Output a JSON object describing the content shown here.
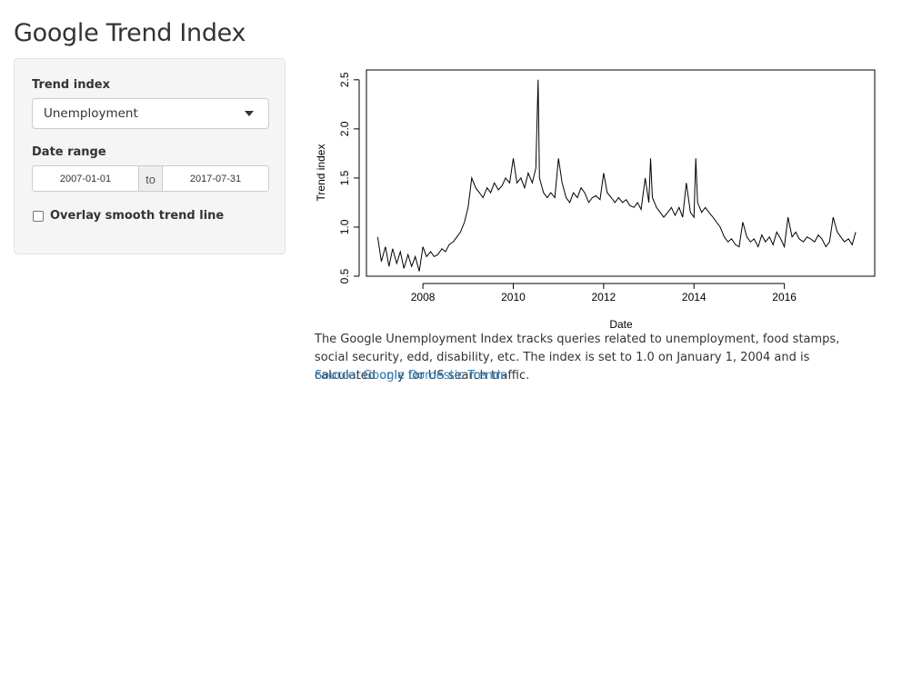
{
  "page": {
    "title": "Google Trend Index"
  },
  "sidebar": {
    "trend_label": "Trend index",
    "trend_selected": "Unemployment",
    "date_label": "Date range",
    "date_start": "2007-01-01",
    "date_sep": "to",
    "date_end": "2017-07-31",
    "overlay_label": "Overlay smooth trend line",
    "overlay_checked": false
  },
  "caption": {
    "text": "The Google Unemployment Index tracks queries related to unemployment, food stamps, social security, edd, disability, etc. The index is set to 1.0 on January 1, 2004 and is calculated only for US search traffic.",
    "source_label": "Source: Google Domestic Trends"
  },
  "chart_data": {
    "type": "line",
    "title": "",
    "xlabel": "Date",
    "ylabel": "Trend index",
    "x_range": [
      "2007-01-01",
      "2017-07-31"
    ],
    "xlim": [
      2006.75,
      2018.0
    ],
    "ylim": [
      0.5,
      2.6
    ],
    "x_ticks": [
      2008,
      2010,
      2012,
      2014,
      2016
    ],
    "x_tick_labels": [
      "2008",
      "2010",
      "2012",
      "2014",
      "2016"
    ],
    "y_ticks": [
      0.5,
      1.0,
      1.5,
      2.0,
      2.5
    ],
    "y_tick_labels": [
      "0.5",
      "1.0",
      "1.5",
      "2.0",
      "2.5"
    ],
    "grid": false,
    "color": "#000000",
    "series": [
      {
        "x": [
          2007.0,
          2007.08,
          2007.17,
          2007.25,
          2007.33,
          2007.42,
          2007.5,
          2007.58,
          2007.67,
          2007.75,
          2007.83,
          2007.92,
          2008.0,
          2008.08,
          2008.17,
          2008.25,
          2008.33,
          2008.42,
          2008.5,
          2008.58,
          2008.67,
          2008.75,
          2008.83,
          2008.92,
          2009.0,
          2009.08,
          2009.17,
          2009.25,
          2009.33,
          2009.42,
          2009.5,
          2009.58,
          2009.67,
          2009.75,
          2009.83,
          2009.92,
          2010.0,
          2010.08,
          2010.17,
          2010.25,
          2010.33,
          2010.42,
          2010.5,
          2010.55,
          2010.58,
          2010.67,
          2010.75,
          2010.83,
          2010.92,
          2011.0,
          2011.08,
          2011.17,
          2011.25,
          2011.33,
          2011.42,
          2011.5,
          2011.58,
          2011.67,
          2011.75,
          2011.83,
          2011.92,
          2012.0,
          2012.08,
          2012.17,
          2012.25,
          2012.33,
          2012.42,
          2012.5,
          2012.58,
          2012.67,
          2012.75,
          2012.83,
          2012.92,
          2013.0,
          2013.04,
          2013.08,
          2013.17,
          2013.25,
          2013.33,
          2013.42,
          2013.5,
          2013.58,
          2013.67,
          2013.75,
          2013.83,
          2013.92,
          2014.0,
          2014.04,
          2014.08,
          2014.17,
          2014.25,
          2014.33,
          2014.42,
          2014.5,
          2014.58,
          2014.67,
          2014.75,
          2014.83,
          2014.92,
          2015.0,
          2015.08,
          2015.17,
          2015.25,
          2015.33,
          2015.42,
          2015.5,
          2015.58,
          2015.67,
          2015.75,
          2015.83,
          2015.92,
          2016.0,
          2016.08,
          2016.17,
          2016.25,
          2016.33,
          2016.42,
          2016.5,
          2016.58,
          2016.67,
          2016.75,
          2016.83,
          2016.92,
          2017.0,
          2017.08,
          2017.17,
          2017.25,
          2017.33,
          2017.42,
          2017.5,
          2017.58
        ],
        "values": [
          0.9,
          0.65,
          0.8,
          0.6,
          0.78,
          0.63,
          0.75,
          0.58,
          0.72,
          0.6,
          0.7,
          0.55,
          0.8,
          0.7,
          0.75,
          0.7,
          0.72,
          0.78,
          0.75,
          0.82,
          0.85,
          0.9,
          0.95,
          1.05,
          1.2,
          1.5,
          1.4,
          1.35,
          1.3,
          1.4,
          1.35,
          1.45,
          1.38,
          1.42,
          1.5,
          1.45,
          1.7,
          1.45,
          1.5,
          1.4,
          1.55,
          1.45,
          1.6,
          2.5,
          1.5,
          1.35,
          1.3,
          1.35,
          1.3,
          1.7,
          1.45,
          1.3,
          1.25,
          1.35,
          1.3,
          1.4,
          1.35,
          1.25,
          1.3,
          1.32,
          1.28,
          1.55,
          1.35,
          1.3,
          1.25,
          1.3,
          1.25,
          1.28,
          1.22,
          1.2,
          1.25,
          1.18,
          1.5,
          1.25,
          1.7,
          1.3,
          1.2,
          1.15,
          1.1,
          1.15,
          1.2,
          1.12,
          1.2,
          1.1,
          1.45,
          1.15,
          1.1,
          1.7,
          1.25,
          1.15,
          1.2,
          1.15,
          1.1,
          1.05,
          1.0,
          0.9,
          0.85,
          0.88,
          0.82,
          0.8,
          1.05,
          0.9,
          0.85,
          0.88,
          0.8,
          0.92,
          0.85,
          0.9,
          0.82,
          0.95,
          0.88,
          0.8,
          1.1,
          0.9,
          0.95,
          0.88,
          0.85,
          0.9,
          0.88,
          0.85,
          0.92,
          0.88,
          0.8,
          0.85,
          1.1,
          0.95,
          0.9,
          0.85,
          0.88,
          0.82,
          0.95
        ]
      }
    ]
  }
}
